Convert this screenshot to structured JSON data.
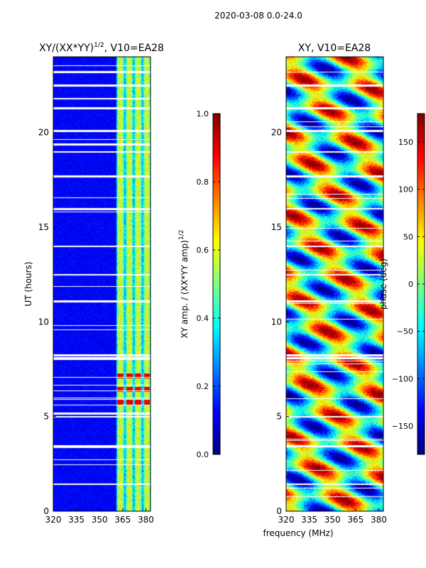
{
  "figure": {
    "suptitle": "2020-03-08 0.0-24.0"
  },
  "colors": {
    "jet": [
      "#00007f",
      "#0000ff",
      "#007fff",
      "#00ffff",
      "#7fff7f",
      "#ffff00",
      "#ff7f00",
      "#ff0000",
      "#7f0000"
    ],
    "gap": "#ffffff",
    "frame": "#000000"
  },
  "chart_data": [
    {
      "type": "heatmap",
      "title": "XY/(XX*YY)",
      "title_sup": "1/2",
      "title_suffix": ", V10=EA28",
      "xlabel": "",
      "ylabel": "UT (hours)",
      "xlim": [
        320,
        383
      ],
      "ylim": [
        0,
        24
      ],
      "xticks": [
        "320",
        "335",
        "350",
        "365",
        "380"
      ],
      "xtick_values": [
        320,
        335,
        350,
        365,
        380
      ],
      "yticks": [
        "0",
        "5",
        "10",
        "15",
        "20"
      ],
      "ytick_values": [
        0,
        5,
        10,
        15,
        20
      ],
      "value_kind": "amplitude",
      "baseline": 0.12,
      "active_band_mhz": [
        360.5,
        383
      ],
      "hot_event_hours": [
        5.3,
        7.5
      ],
      "flagged_hours": [
        1.45,
        3.45,
        5.0,
        5.15,
        8.1,
        8.25,
        11.1,
        12.5,
        14.0,
        16.0,
        17.7,
        19.0,
        19.4,
        20.1,
        21.3,
        21.8,
        22.5,
        23.2
      ],
      "colorbar": {
        "label": "XY amp. / (XX*YY amp)",
        "label_sup": "1/2",
        "range": [
          0.0,
          1.0
        ],
        "ticks": [
          "0.0",
          "0.2",
          "0.4",
          "0.6",
          "0.8",
          "1.0"
        ],
        "tick_values": [
          0.0,
          0.2,
          0.4,
          0.6,
          0.8,
          1.0
        ]
      }
    },
    {
      "type": "heatmap",
      "title": "XY, V10=EA28",
      "xlabel": "frequency (MHz)",
      "ylabel": "",
      "xlim": [
        320,
        383
      ],
      "ylim": [
        0,
        24
      ],
      "xticks": [
        "320",
        "335",
        "350",
        "365",
        "380"
      ],
      "xtick_values": [
        320,
        335,
        350,
        365,
        380
      ],
      "yticks": [
        "0",
        "5",
        "10",
        "15",
        "20"
      ],
      "ytick_values": [
        0,
        5,
        10,
        15,
        20
      ],
      "value_kind": "phase",
      "flagged_hours": [
        1.45,
        3.45,
        5.0,
        8.1,
        8.25,
        11.1,
        12.5,
        14.0,
        16.0,
        17.7,
        19.0,
        20.1,
        21.3,
        22.5
      ],
      "colorbar": {
        "label": "phase (deg)",
        "range": [
          -180,
          180
        ],
        "ticks": [
          "−150",
          "−100",
          "−50",
          "0",
          "50",
          "100",
          "150"
        ],
        "tick_values": [
          -150,
          -100,
          -50,
          0,
          50,
          100,
          150
        ]
      }
    }
  ]
}
